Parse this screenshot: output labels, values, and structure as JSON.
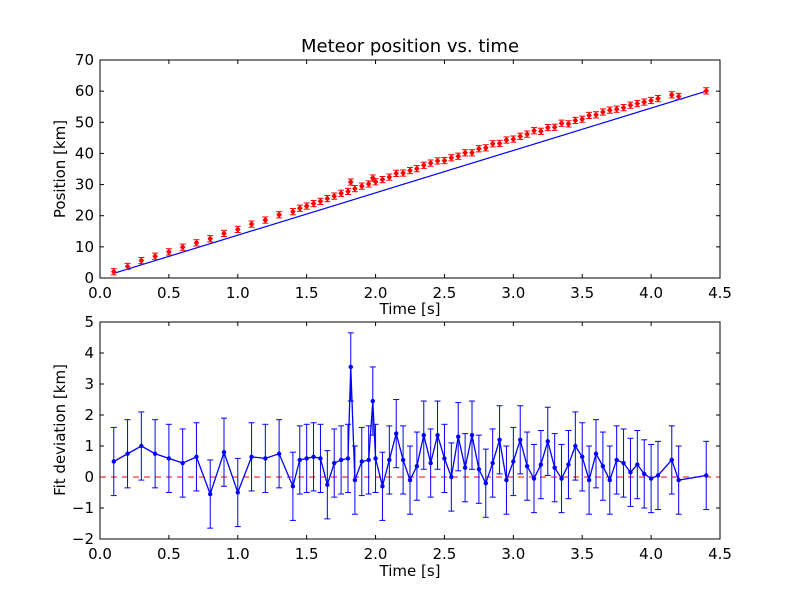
{
  "colors": {
    "fit_line": "#0000ff",
    "measurement_marker": "#ff0000",
    "errorbar": "#0000ff",
    "deviation_line": "#0000ff",
    "zero_line": "#ff0000"
  },
  "chart_data": [
    {
      "type": "scatter",
      "title": "Meteor position vs. time",
      "xlabel": "Time [s]",
      "ylabel": "Position [km]",
      "xlim": [
        0,
        4.5
      ],
      "ylim": [
        0,
        70
      ],
      "xticks": [
        "0.0",
        "0.5",
        "1.0",
        "1.5",
        "2.0",
        "2.5",
        "3.0",
        "3.5",
        "4.0",
        "4.5"
      ],
      "yticks": [
        "0",
        "10",
        "20",
        "30",
        "40",
        "50",
        "60",
        "70"
      ],
      "grid": false,
      "error_km": 1.0,
      "fit_line": {
        "x": [
          0.1,
          4.4
        ],
        "y": [
          1.5,
          60.0
        ]
      },
      "series": [
        {
          "marker": "red-diamond-with-errorbars",
          "x": [
            0.1,
            0.2,
            0.3,
            0.4,
            0.5,
            0.6,
            0.7,
            0.8,
            0.9,
            1.0,
            1.1,
            1.2,
            1.3,
            1.4,
            1.45,
            1.5,
            1.55,
            1.6,
            1.65,
            1.7,
            1.75,
            1.8,
            1.82,
            1.85,
            1.9,
            1.95,
            1.98,
            2.0,
            2.05,
            2.1,
            2.15,
            2.2,
            2.25,
            2.3,
            2.35,
            2.4,
            2.45,
            2.5,
            2.55,
            2.6,
            2.65,
            2.7,
            2.75,
            2.8,
            2.85,
            2.9,
            2.95,
            3.0,
            3.05,
            3.1,
            3.15,
            3.2,
            3.25,
            3.3,
            3.35,
            3.4,
            3.45,
            3.5,
            3.55,
            3.6,
            3.65,
            3.7,
            3.75,
            3.8,
            3.85,
            3.9,
            3.95,
            4.0,
            4.05,
            4.15,
            4.2,
            4.4
          ],
          "y": [
            2.0,
            3.7,
            5.6,
            7.0,
            8.4,
            9.9,
            11.3,
            12.6,
            14.3,
            15.6,
            17.3,
            18.6,
            20.3,
            21.3,
            22.4,
            23.1,
            23.9,
            24.6,
            25.5,
            26.3,
            27.2,
            27.8,
            30.8,
            28.7,
            29.5,
            30.2,
            32.1,
            30.9,
            31.6,
            32.4,
            33.6,
            33.7,
            34.5,
            35.1,
            36.2,
            36.9,
            37.6,
            37.7,
            38.6,
            39.1,
            40.2,
            40.2,
            41.5,
            41.8,
            43.1,
            43.2,
            44.3,
            44.6,
            45.5,
            46.2,
            47.3,
            47.1,
            48.3,
            48.4,
            49.7,
            49.5,
            50.6,
            51.0,
            52.2,
            52.4,
            53.3,
            53.9,
            54.2,
            54.7,
            55.5,
            56.0,
            56.5,
            57.0,
            57.6,
            58.8,
            58.3,
            60.1
          ]
        }
      ]
    },
    {
      "type": "line",
      "xlabel": "Time [s]",
      "ylabel": "Fit deviation [km]",
      "xlim": [
        0,
        4.5
      ],
      "ylim": [
        -2,
        5
      ],
      "xticks": [
        "0.0",
        "0.5",
        "1.0",
        "1.5",
        "2.0",
        "2.5",
        "3.0",
        "3.5",
        "4.0",
        "4.5"
      ],
      "yticks": [
        "−2",
        "−1",
        "0",
        "1",
        "2",
        "3",
        "4",
        "5"
      ],
      "grid": false,
      "reference_line": {
        "y": 0,
        "style": "dashed"
      },
      "series": [
        {
          "marker": "blue-dots-connected-with-errorbars",
          "x": [
            0.1,
            0.2,
            0.3,
            0.4,
            0.5,
            0.6,
            0.7,
            0.8,
            0.9,
            1.0,
            1.1,
            1.2,
            1.3,
            1.4,
            1.45,
            1.5,
            1.55,
            1.6,
            1.65,
            1.7,
            1.75,
            1.8,
            1.82,
            1.85,
            1.9,
            1.95,
            1.98,
            2.0,
            2.05,
            2.1,
            2.15,
            2.2,
            2.25,
            2.3,
            2.35,
            2.4,
            2.45,
            2.5,
            2.55,
            2.6,
            2.65,
            2.7,
            2.75,
            2.8,
            2.85,
            2.9,
            2.95,
            3.0,
            3.05,
            3.1,
            3.15,
            3.2,
            3.25,
            3.3,
            3.35,
            3.4,
            3.45,
            3.5,
            3.55,
            3.6,
            3.65,
            3.7,
            3.75,
            3.8,
            3.85,
            3.9,
            3.95,
            4.0,
            4.05,
            4.15,
            4.2,
            4.4
          ],
          "y": [
            0.5,
            0.75,
            1.0,
            0.75,
            0.6,
            0.45,
            0.65,
            -0.55,
            0.8,
            -0.5,
            0.65,
            0.6,
            0.75,
            -0.3,
            0.55,
            0.6,
            0.65,
            0.6,
            -0.25,
            0.45,
            0.55,
            0.6,
            3.55,
            -0.1,
            0.5,
            0.55,
            2.45,
            0.6,
            -0.3,
            0.55,
            1.4,
            0.55,
            -0.1,
            0.35,
            1.35,
            0.45,
            1.35,
            0.6,
            0.0,
            1.3,
            0.3,
            1.35,
            0.25,
            -0.2,
            0.45,
            1.2,
            -0.1,
            0.5,
            1.2,
            0.35,
            -0.05,
            0.4,
            1.15,
            0.3,
            -0.05,
            0.4,
            1.0,
            0.65,
            -0.1,
            0.75,
            0.35,
            -0.1,
            0.55,
            0.45,
            0.15,
            0.4,
            0.1,
            -0.05,
            0.05,
            0.55,
            -0.1,
            0.05
          ]
        }
      ]
    }
  ]
}
